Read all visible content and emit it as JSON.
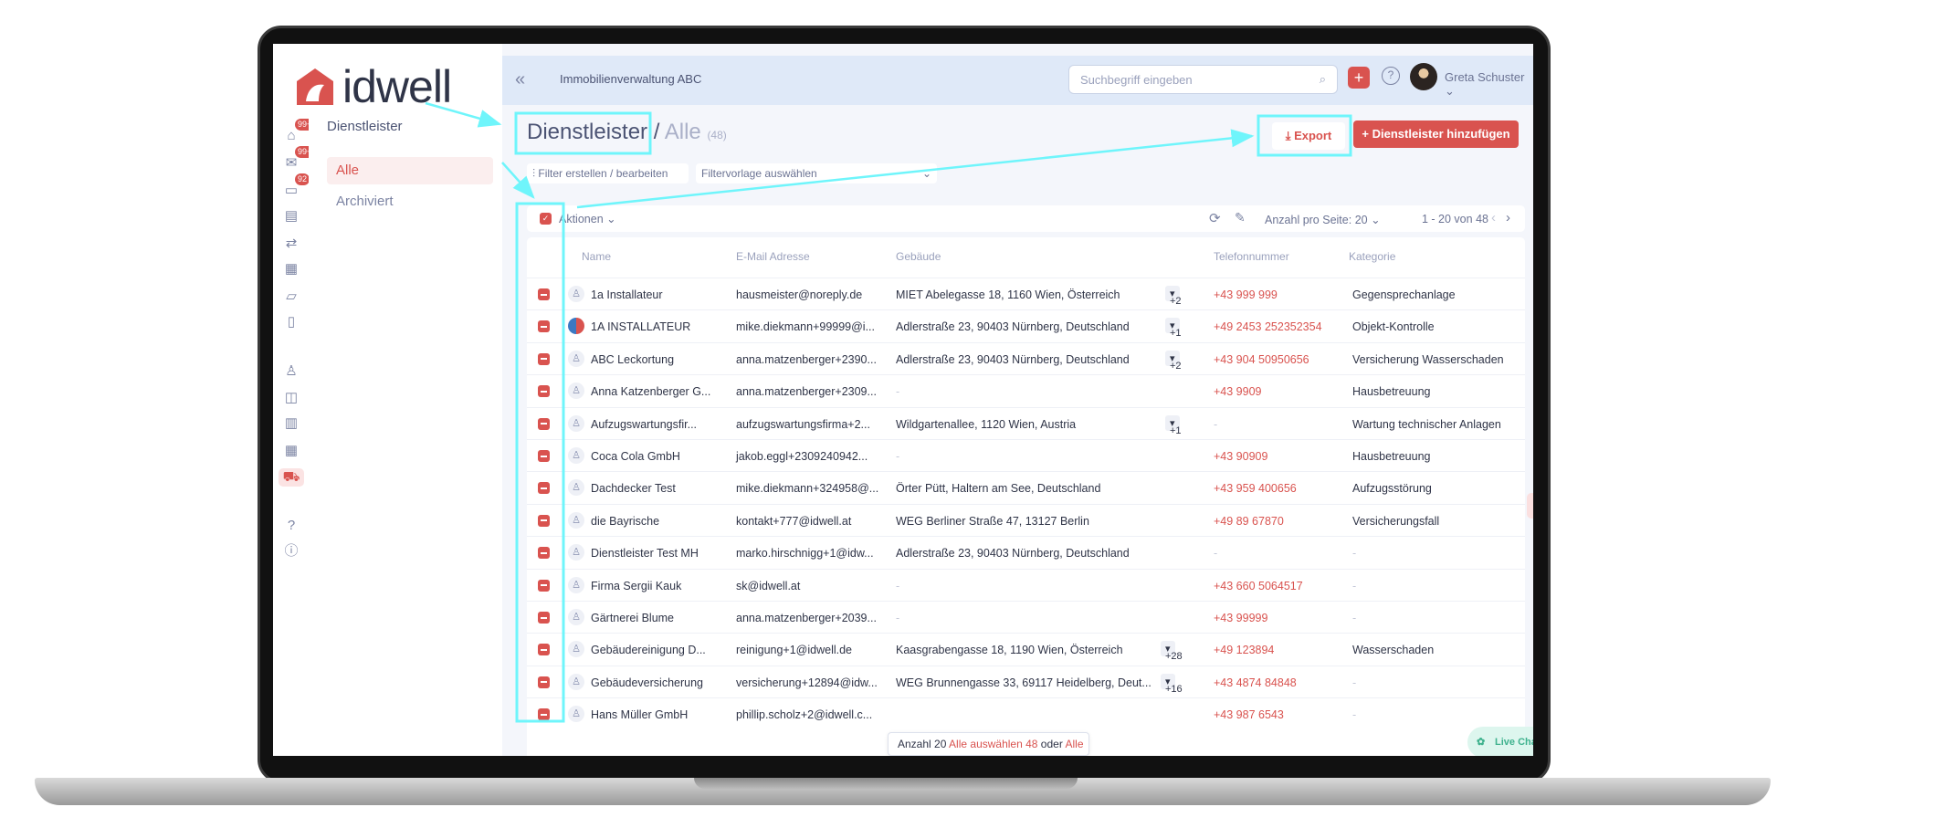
{
  "app": {
    "logo_text": "idwell",
    "org": "Immobilienverwaltung ABC"
  },
  "colors": {
    "accent": "#d9534f",
    "topbar": "#dfe9f8",
    "annotation": "#6ff5fb"
  },
  "rail": {
    "badges": [
      "99+",
      "99+",
      "92"
    ],
    "icons": [
      "home-icon",
      "mail-icon",
      "chat-icon",
      "tasks-icon",
      "transfer-icon",
      "calendar-icon",
      "folder-icon",
      "document-icon",
      "person-icon",
      "board-icon",
      "building-icon",
      "buildings-icon",
      "truck-icon",
      "help-icon",
      "info-icon"
    ]
  },
  "sidebar": {
    "title": "Dienstleister",
    "items": [
      {
        "label": "Alle",
        "active": true
      },
      {
        "label": "Archiviert",
        "active": false
      }
    ]
  },
  "topbar": {
    "search_placeholder": "Suchbegriff eingeben",
    "user": "Greta Schuster"
  },
  "page": {
    "title": "Dienstleister /",
    "subtitle": "Alle",
    "count": "(48)",
    "export_label": "Export",
    "add_label": "Dienstleister hinzufügen"
  },
  "filters": {
    "edit_label": "Filter erstellen / bearbeiten",
    "template_placeholder": "Filtervorlage auswählen"
  },
  "toolbar": {
    "actions_label": "Aktionen",
    "per_page_label": "Anzahl pro Seite:",
    "per_page": "20",
    "range": "1 - 20 von 48"
  },
  "table": {
    "columns": [
      "Name",
      "E-Mail Adresse",
      "Gebäude",
      "Telefonnummer",
      "Kategorie"
    ],
    "rows": [
      {
        "name": "1a Installateur",
        "email": "hausmeister@noreply.de",
        "building": "MIET Abelegasse 18, 1160 Wien, Österreich",
        "more": "+2",
        "phone": "+43 999 999",
        "category": "Gegensprechanlage"
      },
      {
        "name": "1A INSTALLATEUR",
        "email": "mike.diekmann+99999@i...",
        "building": "Adlerstraße 23, 90403 Nürnberg, Deutschland",
        "more": "+1",
        "phone": "+49 2453 252352354",
        "category": "Objekt-Kontrolle",
        "logo": true
      },
      {
        "name": "ABC Leckortung",
        "email": "anna.matzenberger+2390...",
        "building": "Adlerstraße 23, 90403 Nürnberg, Deutschland",
        "more": "+2",
        "phone": "+43 904 50950656",
        "category": "Versicherung Wasserschaden"
      },
      {
        "name": "Anna Katzenberger G...",
        "email": "anna.matzenberger+2309...",
        "building": "-",
        "more": "",
        "phone": "+43 9909",
        "category": "Hausbetreuung"
      },
      {
        "name": "Aufzugswartungsfir...",
        "email": "aufzugswartungsfirma+2...",
        "building": "Wildgartenallee, 1120 Wien, Austria",
        "more": "+1",
        "phone": "-",
        "category": "Wartung technischer Anlagen"
      },
      {
        "name": "Coca Cola GmbH",
        "email": "jakob.eggl+2309240942...",
        "building": "-",
        "more": "",
        "phone": "+43 90909",
        "category": "Hausbetreuung"
      },
      {
        "name": "Dachdecker Test",
        "email": "mike.diekmann+324958@...",
        "building": "Örter Pütt, Haltern am See, Deutschland",
        "more": "",
        "phone": "+43 959 400656",
        "category": "Aufzugsstörung"
      },
      {
        "name": "die Bayrische",
        "email": "kontakt+777@idwell.at",
        "building": "WEG Berliner Straße 47, 13127 Berlin",
        "more": "",
        "phone": "+49 89 67870",
        "category": "Versicherungsfall"
      },
      {
        "name": "Dienstleister Test MH",
        "email": "marko.hirschnigg+1@idw...",
        "building": "Adlerstraße 23, 90403 Nürnberg, Deutschland",
        "more": "",
        "phone": "-",
        "category": "-"
      },
      {
        "name": "Firma Sergii Kauk",
        "email": "sk@idwell.at",
        "building": "-",
        "more": "",
        "phone": "+43 660 5064517",
        "category": "-"
      },
      {
        "name": "Gärtnerei Blume",
        "email": "anna.matzenberger+2039...",
        "building": "-",
        "more": "",
        "phone": "+43 99999",
        "category": "-"
      },
      {
        "name": "Gebäudereinigung D...",
        "email": "reinigung+1@idwell.de",
        "building": "Kaasgrabengasse 18, 1190 Wien, Österreich",
        "more": "+28",
        "phone": "+49 123894",
        "category": "Wasserschaden"
      },
      {
        "name": "Gebäudeversicherung",
        "email": "versicherung+12894@idw...",
        "building": "WEG Brunnengasse 33, 69117 Heidelberg, Deut...",
        "more": "+16",
        "phone": "+43 4874 84848",
        "category": "-"
      },
      {
        "name": "Hans Müller GmbH",
        "email": "phillip.scholz+2@idwell.c...",
        "building": "",
        "more": "",
        "phone": "+43 987 6543",
        "category": "-"
      }
    ]
  },
  "selection": {
    "count_label": "Anzahl 20",
    "select_all": "Alle auswählen 48",
    "or": "oder",
    "clear": "Alle aufheben"
  },
  "livechat": {
    "label": "Live Chat & Hilfe"
  }
}
